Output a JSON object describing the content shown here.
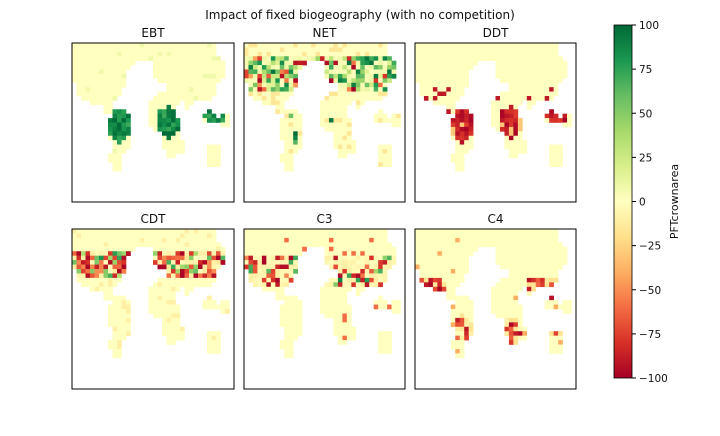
{
  "figure": {
    "title": "Impact of fixed biogeography (with no competition)"
  },
  "colorbar": {
    "label": "PFTcrownarea",
    "ticks": [
      100,
      75,
      50,
      25,
      0,
      -25,
      -50,
      -75,
      -100
    ],
    "range": [
      -100,
      100
    ],
    "colormap": "RdYlGn",
    "stops": [
      "#a50026",
      "#d73027",
      "#f46d43",
      "#fdae61",
      "#fee08b",
      "#ffffbf",
      "#d9ef8b",
      "#a6d96a",
      "#66bd63",
      "#1a9850",
      "#006837"
    ]
  },
  "chart_data": [
    {
      "type": "heatmap",
      "title": "EBT",
      "grid": false,
      "pattern": "tropical_forest_gain",
      "value_range": [
        -100,
        100
      ]
    },
    {
      "type": "heatmap",
      "title": "NET",
      "grid": false,
      "pattern": "boreal_mixed",
      "value_range": [
        -100,
        100
      ]
    },
    {
      "type": "heatmap",
      "title": "DDT",
      "grid": false,
      "pattern": "tropical_loss",
      "value_range": [
        -100,
        100
      ]
    },
    {
      "type": "heatmap",
      "title": "CDT",
      "grid": false,
      "pattern": "boreal_loss",
      "value_range": [
        -100,
        100
      ]
    },
    {
      "type": "heatmap",
      "title": "C3",
      "grid": false,
      "pattern": "temperate_scattered_loss",
      "value_range": [
        -100,
        100
      ]
    },
    {
      "type": "heatmap",
      "title": "C4",
      "grid": false,
      "pattern": "tropical_savanna_loss",
      "value_range": [
        -100,
        100
      ]
    }
  ]
}
